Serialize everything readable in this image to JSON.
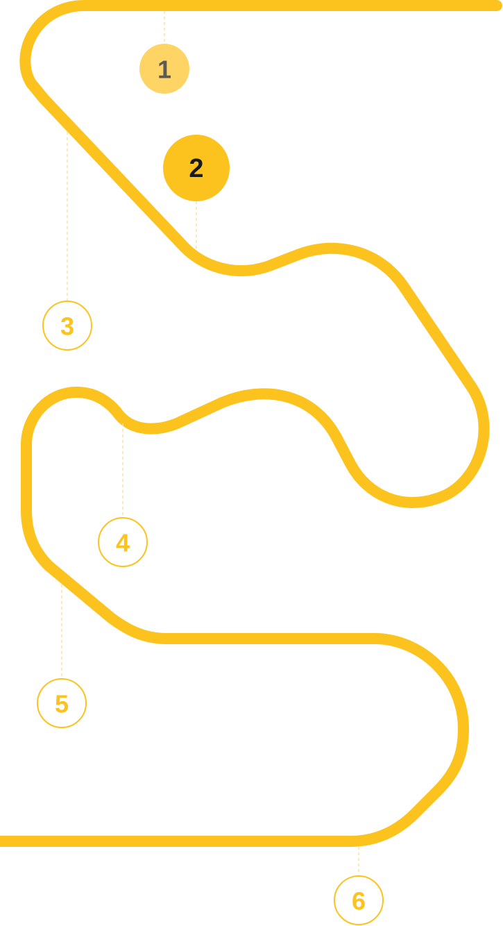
{
  "colors": {
    "track": "#FCC21E",
    "connector": "#FDE09A",
    "node_outline": "#FCC21E",
    "node_done_fill": "#FED465",
    "node_done_text": "#5A5A5A",
    "node_active_fill": "#FCC21E",
    "node_active_text": "#1A1A1A",
    "node_pending_fill": "#FFFFFF",
    "node_pending_text": "#FCC21E"
  },
  "route": {
    "steps": [
      {
        "label": "1",
        "state": "done"
      },
      {
        "label": "2",
        "state": "active"
      },
      {
        "label": "3",
        "state": "pending"
      },
      {
        "label": "4",
        "state": "pending"
      },
      {
        "label": "5",
        "state": "pending"
      },
      {
        "label": "6",
        "state": "pending"
      }
    ]
  }
}
